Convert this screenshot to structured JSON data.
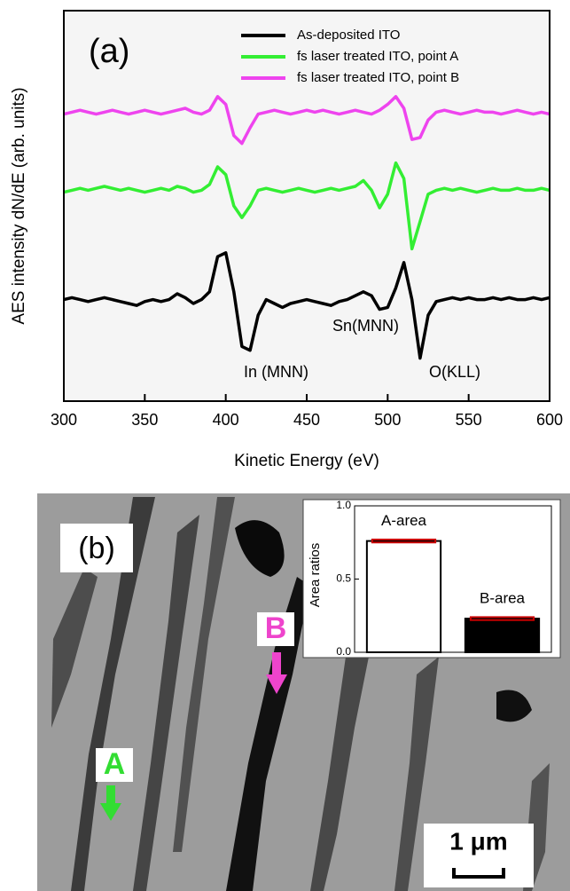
{
  "chart_data": [
    {
      "type": "line",
      "x_label": "Kinetic Energy (eV)",
      "y_label": "AES intensity dN/dE (arb. units)",
      "annotations": [
        "(a)",
        "In (MNN)",
        "Sn(MNN)",
        "O(KLL)"
      ],
      "x": [
        300,
        305,
        310,
        315,
        320,
        325,
        330,
        335,
        340,
        345,
        350,
        355,
        360,
        365,
        370,
        375,
        380,
        385,
        390,
        395,
        400,
        405,
        410,
        415,
        420,
        425,
        430,
        435,
        440,
        445,
        450,
        455,
        460,
        465,
        470,
        475,
        480,
        485,
        490,
        495,
        500,
        505,
        510,
        515,
        520,
        525,
        530,
        535,
        540,
        545,
        550,
        555,
        560,
        565,
        570,
        575,
        580,
        585,
        590,
        595,
        600
      ],
      "xlim": [
        300,
        600
      ],
      "xticks": [
        300,
        350,
        400,
        450,
        500,
        550,
        600
      ],
      "ylim": [
        0,
        10
      ],
      "legend": "upper right",
      "series": [
        {
          "name": "As-deposited ITO",
          "color": "#000000",
          "values": [
            2.6,
            2.65,
            2.6,
            2.55,
            2.6,
            2.65,
            2.6,
            2.55,
            2.5,
            2.45,
            2.55,
            2.6,
            2.55,
            2.6,
            2.75,
            2.65,
            2.5,
            2.6,
            2.8,
            3.7,
            3.8,
            2.8,
            1.4,
            1.3,
            2.2,
            2.6,
            2.5,
            2.4,
            2.5,
            2.55,
            2.6,
            2.55,
            2.5,
            2.45,
            2.55,
            2.6,
            2.7,
            2.8,
            2.7,
            2.35,
            2.4,
            2.9,
            3.55,
            2.6,
            1.1,
            2.2,
            2.55,
            2.6,
            2.65,
            2.6,
            2.65,
            2.6,
            2.6,
            2.65,
            2.6,
            2.65,
            2.6,
            2.6,
            2.65,
            2.6,
            2.65
          ]
        },
        {
          "name": "fs laser treated ITO, point A",
          "color": "#33ee33",
          "values": [
            5.35,
            5.4,
            5.45,
            5.4,
            5.45,
            5.5,
            5.45,
            5.4,
            5.45,
            5.4,
            5.35,
            5.4,
            5.45,
            5.4,
            5.5,
            5.45,
            5.35,
            5.4,
            5.55,
            6.0,
            5.8,
            5.0,
            4.7,
            5.0,
            5.4,
            5.45,
            5.4,
            5.35,
            5.4,
            5.45,
            5.4,
            5.35,
            5.4,
            5.45,
            5.4,
            5.45,
            5.5,
            5.65,
            5.4,
            4.95,
            5.3,
            6.1,
            5.7,
            3.9,
            4.6,
            5.3,
            5.4,
            5.45,
            5.4,
            5.45,
            5.4,
            5.35,
            5.4,
            5.45,
            5.4,
            5.4,
            5.45,
            5.4,
            5.4,
            5.45,
            5.4
          ]
        },
        {
          "name": "fs laser treated ITO, point B",
          "color": "#ee44ee",
          "values": [
            7.35,
            7.4,
            7.45,
            7.4,
            7.35,
            7.4,
            7.45,
            7.4,
            7.35,
            7.4,
            7.45,
            7.4,
            7.35,
            7.4,
            7.45,
            7.5,
            7.4,
            7.35,
            7.45,
            7.8,
            7.6,
            6.8,
            6.6,
            7.0,
            7.35,
            7.4,
            7.45,
            7.4,
            7.35,
            7.4,
            7.45,
            7.4,
            7.45,
            7.4,
            7.35,
            7.4,
            7.45,
            7.4,
            7.35,
            7.45,
            7.6,
            7.8,
            7.5,
            6.7,
            6.75,
            7.2,
            7.4,
            7.45,
            7.4,
            7.35,
            7.4,
            7.45,
            7.4,
            7.4,
            7.35,
            7.4,
            7.45,
            7.4,
            7.35,
            7.4,
            7.35
          ]
        }
      ]
    },
    {
      "type": "bar",
      "y_label": "Area ratios",
      "annotations": [
        "(b)",
        "A",
        "B",
        "1 μm"
      ],
      "categories": [
        "A-area",
        "B-area"
      ],
      "values": [
        0.76,
        0.23
      ],
      "errors": [
        0.01,
        0.01
      ],
      "colors": [
        "#ffffff",
        "#000000"
      ],
      "error_color": "#cc0000",
      "ylim": [
        0,
        1
      ],
      "yticks": [
        {
          "value": 0,
          "label": "0.0"
        },
        0.5,
        {
          "value": 1,
          "label": "1.0"
        }
      ]
    }
  ]
}
